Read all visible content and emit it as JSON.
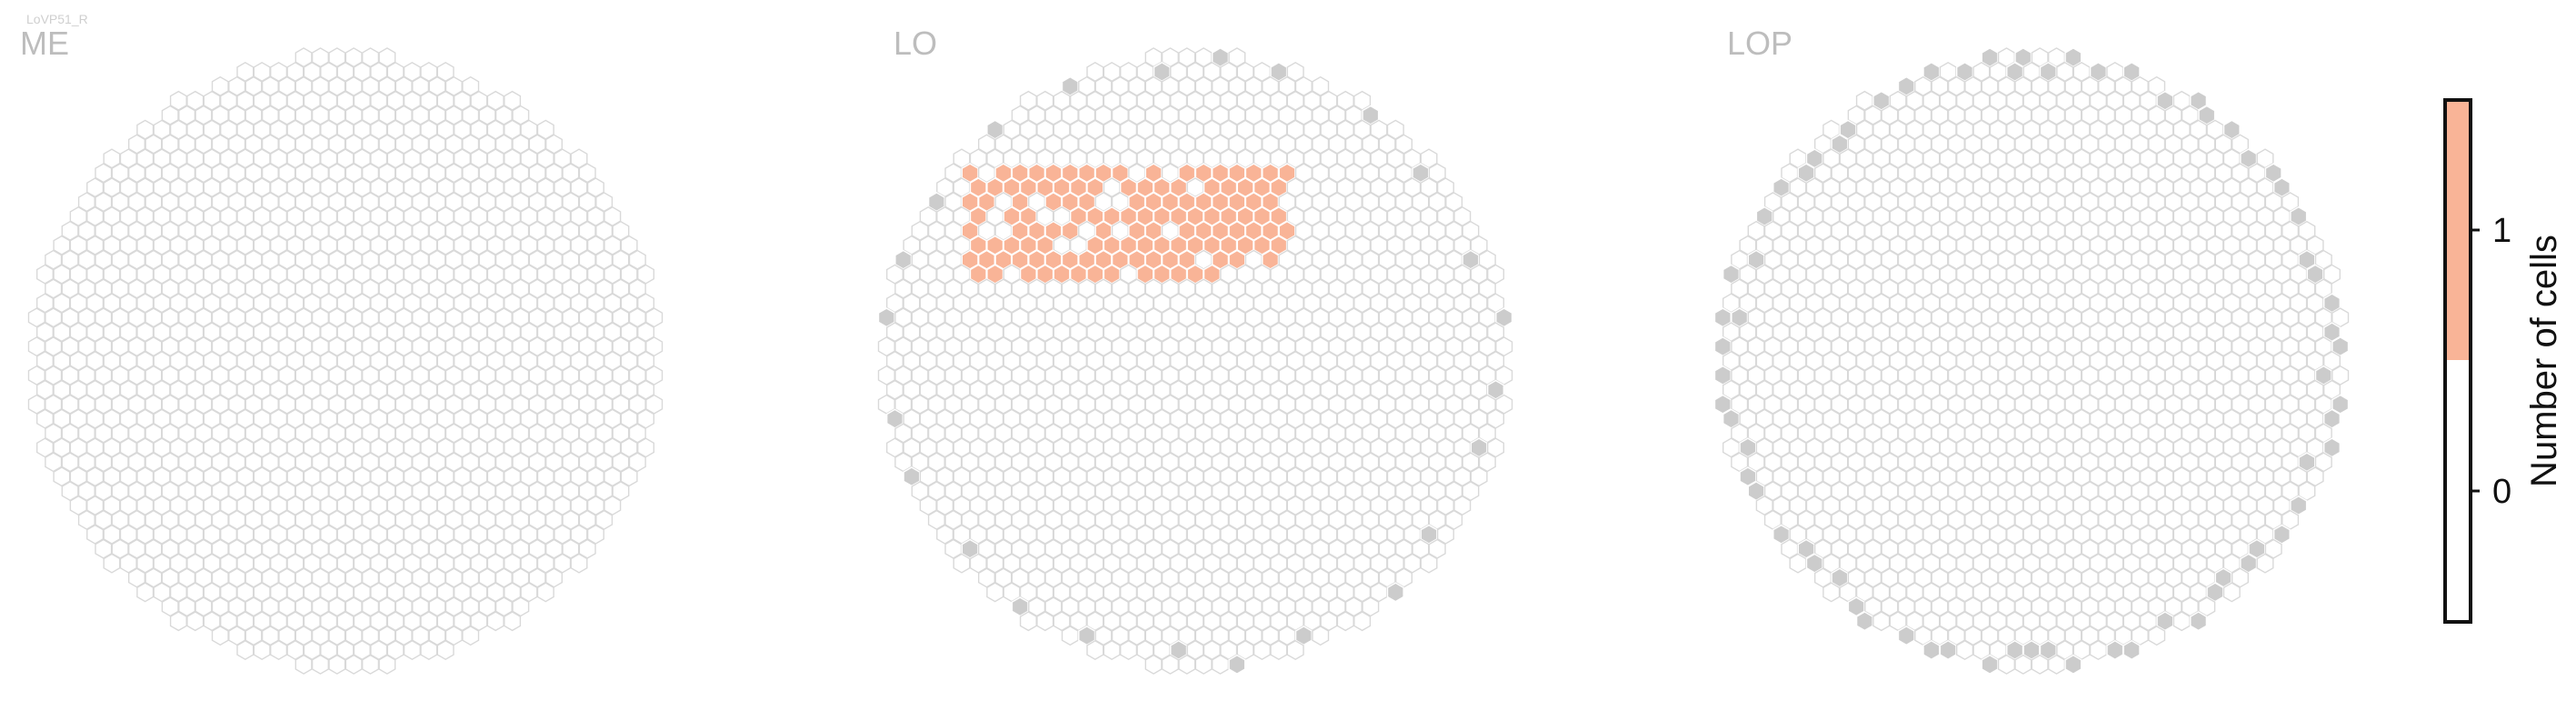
{
  "cell_type_label": "LoVP51_R",
  "colors": {
    "empty": "#ffffff",
    "filled": "#f9b497",
    "outline": "#d9d9d9",
    "missing": "#cccccc",
    "title": "#bdbdbd",
    "colorbar_border": "#111111",
    "label_text": "#111111"
  },
  "chart_data": {
    "type": "heatmap",
    "description_value": "hexagonal column grid per neuropil; each hexagon is a column, colored by number of cells",
    "panels": [
      {
        "title": "ME",
        "filled_columns": [],
        "missing_columns": 0
      },
      {
        "title": "LO",
        "filled_count": 127,
        "missing_columns": 24
      },
      {
        "title": "LOP",
        "filled_count": 0,
        "missing_columns": 70
      }
    ],
    "colorbar": {
      "label": "Number of cells",
      "ticks": [
        0,
        1
      ],
      "tick_labels": [
        "0",
        "1"
      ],
      "range": [
        -0.5,
        1.5
      ],
      "bins": [
        {
          "value": 0,
          "color": "#ffffff"
        },
        {
          "value": 1,
          "color": "#f9b497"
        }
      ]
    }
  }
}
